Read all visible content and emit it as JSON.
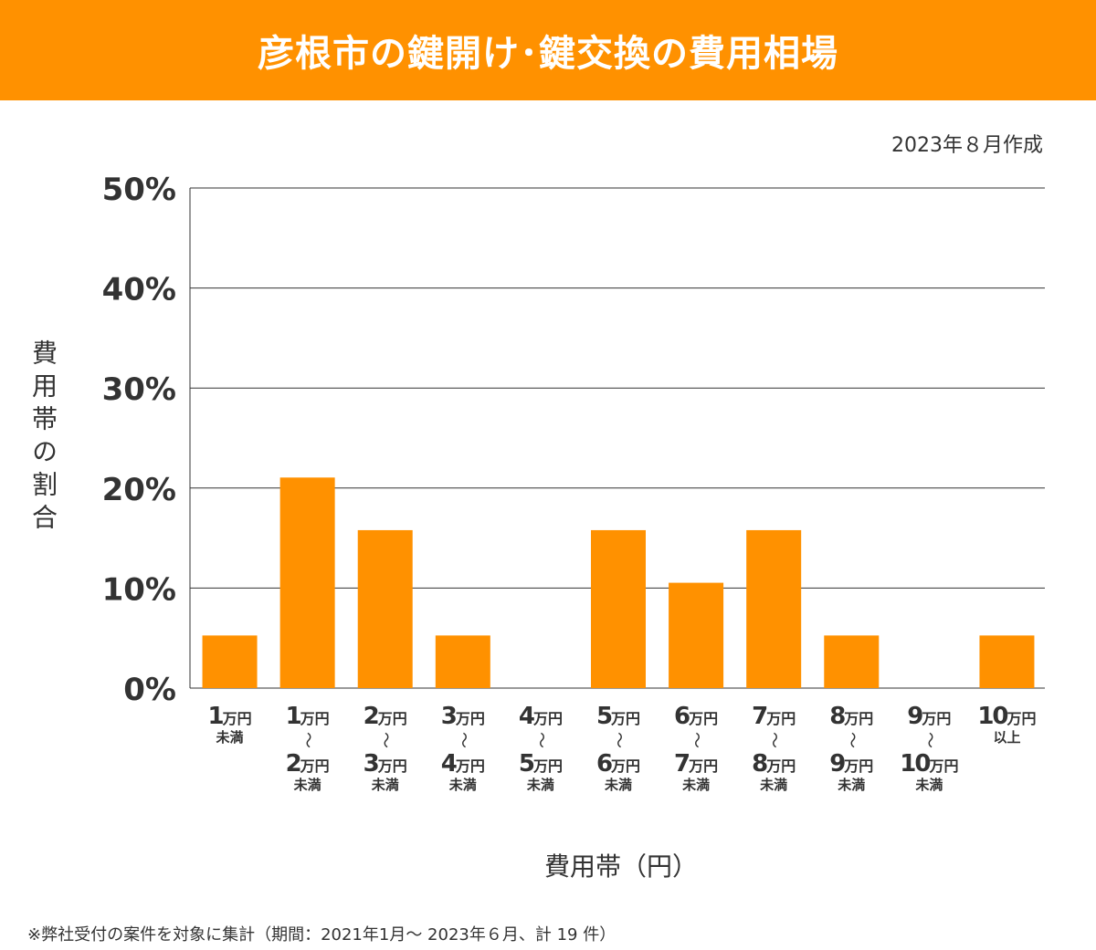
{
  "title": "彦根市の鍵開け･鍵交換の費用相場",
  "date_note": "2023年８月作成",
  "footnote": "※弊社受付の案件を対象に集計（期間：2021年1月～ 2023年６月、計 19 件）",
  "colors": {
    "bar": "#FF9100",
    "title_bg": "#FF9100",
    "grid": "#333333"
  },
  "chart_data": {
    "type": "bar",
    "title": "",
    "xlabel": "費用帯（円）",
    "ylabel": "費用帯の割合",
    "ylim": [
      0,
      50
    ],
    "yticks": [
      "0%",
      "10%",
      "20%",
      "30%",
      "40%",
      "50%"
    ],
    "grid": true,
    "categories": [
      {
        "from": "1",
        "from_unit": "万円",
        "tilde": "",
        "to": "",
        "to_unit": "",
        "suffix": "未満"
      },
      {
        "from": "1",
        "from_unit": "万円",
        "tilde": "〜",
        "to": "2",
        "to_unit": "万円",
        "suffix": "未満"
      },
      {
        "from": "2",
        "from_unit": "万円",
        "tilde": "〜",
        "to": "3",
        "to_unit": "万円",
        "suffix": "未満"
      },
      {
        "from": "3",
        "from_unit": "万円",
        "tilde": "〜",
        "to": "4",
        "to_unit": "万円",
        "suffix": "未満"
      },
      {
        "from": "4",
        "from_unit": "万円",
        "tilde": "〜",
        "to": "5",
        "to_unit": "万円",
        "suffix": "未満"
      },
      {
        "from": "5",
        "from_unit": "万円",
        "tilde": "〜",
        "to": "6",
        "to_unit": "万円",
        "suffix": "未満"
      },
      {
        "from": "6",
        "from_unit": "万円",
        "tilde": "〜",
        "to": "7",
        "to_unit": "万円",
        "suffix": "未満"
      },
      {
        "from": "7",
        "from_unit": "万円",
        "tilde": "〜",
        "to": "8",
        "to_unit": "万円",
        "suffix": "未満"
      },
      {
        "from": "8",
        "from_unit": "万円",
        "tilde": "〜",
        "to": "9",
        "to_unit": "万円",
        "suffix": "未満"
      },
      {
        "from": "9",
        "from_unit": "万円",
        "tilde": "〜",
        "to": "10",
        "to_unit": "万円",
        "suffix": "未満"
      },
      {
        "from": "10",
        "from_unit": "万円",
        "tilde": "",
        "to": "",
        "to_unit": "",
        "suffix": "以上"
      }
    ],
    "values": [
      5.26,
      21.05,
      15.79,
      5.26,
      0,
      15.79,
      10.53,
      15.79,
      5.26,
      0,
      5.26
    ]
  }
}
